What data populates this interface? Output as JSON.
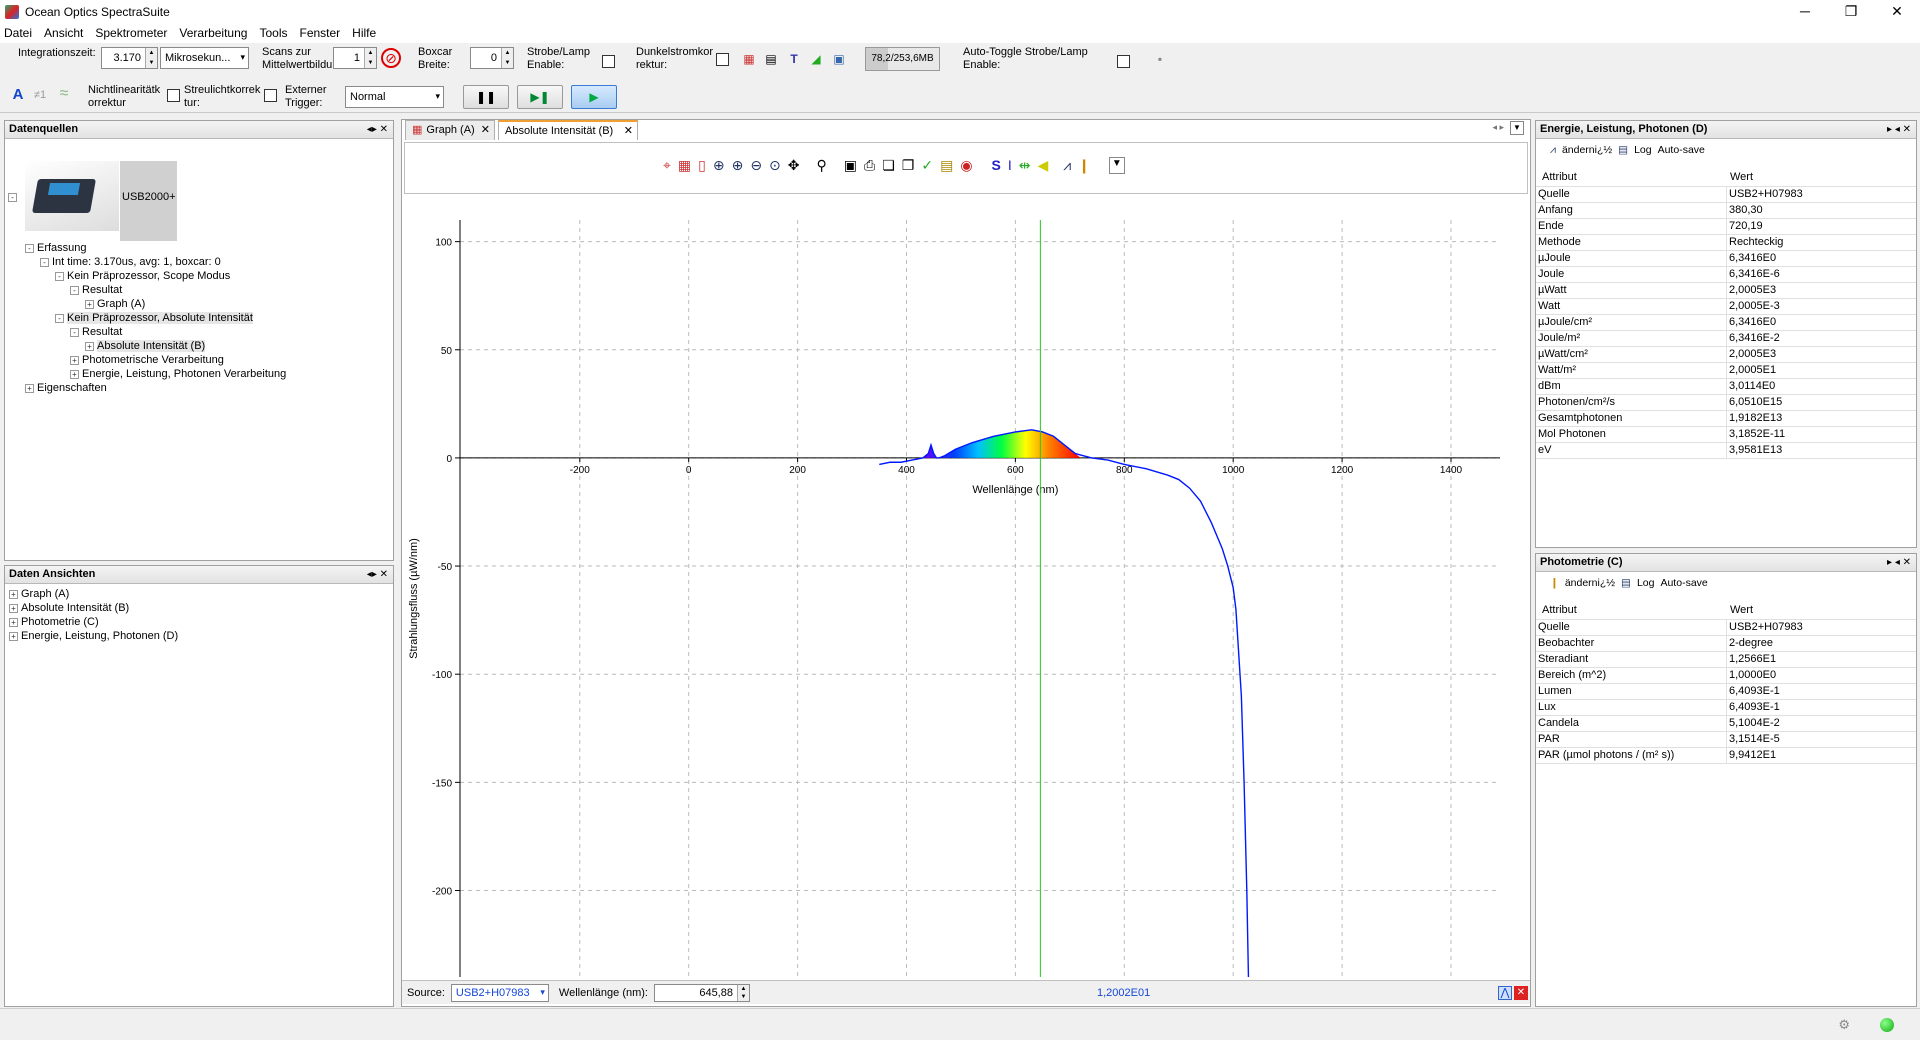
{
  "window": {
    "title": "Ocean Optics SpectraSuite",
    "minimize": "─",
    "maximize": "❐",
    "close": "✕"
  },
  "menu": [
    "Datei",
    "Ansicht",
    "Spektrometer",
    "Verarbeitung",
    "Tools",
    "Fenster",
    "Hilfe"
  ],
  "toolbar": {
    "integration_label": "Integrationszeit:",
    "integration_value": "3.170",
    "integration_unit": "Mikrosekun...",
    "scans_label_1": "Scans zur",
    "scans_label_2": "Mittelwertbildu",
    "scans_value": "1",
    "boxcar_label_1": "Boxcar",
    "boxcar_label_2": "Breite:",
    "boxcar_value": "0",
    "strobe_label_1": "Strobe/Lamp",
    "strobe_label_2": "Enable:",
    "dark_label_1": "Dunkelstromkor",
    "dark_label_2": "rektur:",
    "memory": "78,2/253,6MB",
    "autotoggle_label_1": "Auto-Toggle Strobe/Lamp",
    "autotoggle_label_2": "Enable:",
    "nonlin_label_1": "Nichtlinearitätk",
    "nonlin_label_2": "orrektur",
    "stray_label_1": "Streulichtkorrek",
    "stray_label_2": "tur:",
    "trigger_label_1": "Externer",
    "trigger_label_2": "Trigger:",
    "trigger_value": "Normal",
    "font_icon": "A",
    "neq_icon": "≠1",
    "wave_icon": "≈"
  },
  "datasources": {
    "title": "Datenquellen",
    "device": "USB2000+",
    "tree": [
      {
        "label": "Erfassung",
        "level": 1,
        "pm": "-"
      },
      {
        "label": "Int time: 3.170us, avg: 1, boxcar: 0",
        "level": 2,
        "pm": "-"
      },
      {
        "label": "Kein Präprozessor, Scope Modus",
        "level": 3,
        "pm": "-"
      },
      {
        "label": "Resultat",
        "level": 4,
        "pm": "-"
      },
      {
        "label": "Graph (A)",
        "level": 5,
        "pm": "+"
      },
      {
        "label": "Kein Präprozessor, Absolute Intensität",
        "level": 3,
        "pm": "-"
      },
      {
        "label": "Resultat",
        "level": 4,
        "pm": "-"
      },
      {
        "label": "Absolute Intensität (B)",
        "level": 5,
        "pm": "+"
      },
      {
        "label": "Photometrische Verarbeitung",
        "level": 4,
        "pm": "+"
      },
      {
        "label": "Energie, Leistung, Photonen Verarbeitung",
        "level": 4,
        "pm": "+"
      },
      {
        "label": "Eigenschaften",
        "level": 1,
        "pm": "+"
      }
    ]
  },
  "dataviews": {
    "title": "Daten Ansichten",
    "items": [
      "Graph (A)",
      "Absolute Intensität (B)",
      "Photometrie (C)",
      "Energie, Leistung, Photonen (D)"
    ]
  },
  "tabs": [
    {
      "label": "Graph (A)"
    },
    {
      "label": "Absolute Intensität (B)"
    }
  ],
  "graph": {
    "source_label": "Source:",
    "source_value": "USB2+H07983",
    "wavelength_label": "Wellenlänge (nm):",
    "wavelength_value": "645,88",
    "cursor_value": "1,2002E01"
  },
  "chart_data": {
    "type": "line",
    "title": "",
    "xlabel": "Wellenlänge (nm)",
    "ylabel": "Strahlungsfluss (µW/nm)",
    "xlim": [
      -420,
      1490
    ],
    "ylim": [
      -240,
      110
    ],
    "xticks": [
      -200,
      0,
      200,
      400,
      600,
      800,
      1000,
      1200,
      1400
    ],
    "yticks": [
      100,
      50,
      0,
      -50,
      -100,
      -150,
      -200
    ],
    "cursor_x": 645.88,
    "series": [
      {
        "name": "Absolute Intensität",
        "x": [
          350,
          370,
          390,
          410,
          430,
          440,
          445,
          450,
          455,
          460,
          470,
          490,
          520,
          560,
          600,
          630,
          650,
          670,
          690,
          710,
          740,
          770,
          800,
          840,
          880,
          900,
          920,
          940,
          960,
          980,
          990,
          1000,
          1005,
          1010,
          1015,
          1020,
          1022,
          1025,
          1028
        ],
        "y": [
          -3,
          -2,
          -2,
          -1,
          0,
          2,
          6,
          2,
          0,
          0,
          1,
          4,
          7,
          10,
          12,
          13,
          12,
          10,
          6,
          2,
          0,
          -1,
          -3,
          -5,
          -8,
          -10,
          -14,
          -20,
          -30,
          -42,
          -50,
          -60,
          -70,
          -90,
          -110,
          -150,
          -170,
          -200,
          -240
        ]
      }
    ]
  },
  "energy_panel": {
    "title": "Energie, Leistung, Photonen (D)",
    "toolbar_change": "änderni¿½",
    "toolbar_log": "Log",
    "toolbar_autosave": "Auto-save",
    "col_attr": "Attribut",
    "col_val": "Wert",
    "rows": [
      [
        "Quelle",
        "USB2+H07983"
      ],
      [
        "Anfang",
        "380,30"
      ],
      [
        "Ende",
        "720,19"
      ],
      [
        "Methode",
        "Rechteckig"
      ],
      [
        "µJoule",
        "6,3416E0"
      ],
      [
        "Joule",
        "6,3416E-6"
      ],
      [
        "µWatt",
        "2,0005E3"
      ],
      [
        "Watt",
        "2,0005E-3"
      ],
      [
        "µJoule/cm²",
        "6,3416E0"
      ],
      [
        "Joule/m²",
        "6,3416E-2"
      ],
      [
        "µWatt/cm²",
        "2,0005E3"
      ],
      [
        "Watt/m²",
        "2,0005E1"
      ],
      [
        "dBm",
        "3,0114E0"
      ],
      [
        "Photonen/cm²/s",
        "6,0510E15"
      ],
      [
        "Gesamtphotonen",
        "1,9182E13"
      ],
      [
        "Mol Photonen",
        "3,1852E-11"
      ],
      [
        "eV",
        "3,9581E13"
      ]
    ]
  },
  "photometry_panel": {
    "title": "Photometrie (C)",
    "toolbar_change": "änderni¿½",
    "toolbar_log": "Log",
    "toolbar_autosave": "Auto-save",
    "col_attr": "Attribut",
    "col_val": "Wert",
    "rows": [
      [
        "Quelle",
        "USB2+H07983"
      ],
      [
        "Beobachter",
        "2-degree"
      ],
      [
        "Steradiant",
        "1,2566E1"
      ],
      [
        "Bereich (m^2)",
        "1,0000E0"
      ],
      [
        "Lumen",
        "6,4093E-1"
      ],
      [
        "Lux",
        "6,4093E-1"
      ],
      [
        "Candela",
        "5,1004E-2"
      ],
      [
        "PAR",
        "3,1514E-5"
      ],
      [
        "PAR (µmol photons / (m² s))",
        "9,9412E1"
      ]
    ]
  }
}
